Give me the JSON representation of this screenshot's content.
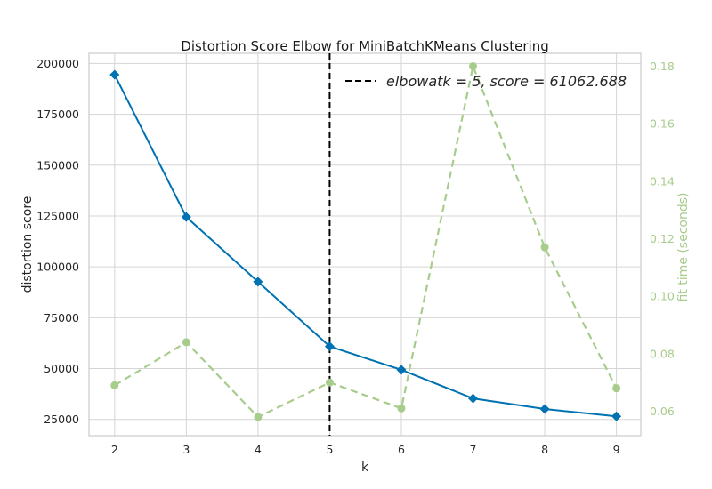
{
  "chart_data": {
    "type": "line",
    "title": "Distortion Score Elbow for MiniBatchKMeans Clustering",
    "xlabel": "k",
    "ylabel": "distortion score",
    "y2label": "fit time (seconds)",
    "x": [
      2,
      3,
      4,
      5,
      6,
      7,
      8,
      9
    ],
    "xticks": [
      "2",
      "3",
      "4",
      "5",
      "6",
      "7",
      "8",
      "9"
    ],
    "ylim": [
      17000,
      205000
    ],
    "yticks": [
      25000,
      50000,
      75000,
      100000,
      125000,
      150000,
      175000,
      200000
    ],
    "ytick_labels": [
      "25000",
      "50000",
      "75000",
      "100000",
      "125000",
      "150000",
      "175000",
      "200000"
    ],
    "y2lim": [
      0.0515,
      0.1845
    ],
    "y2ticks": [
      0.06,
      0.08,
      0.1,
      0.12,
      0.14,
      0.16,
      0.18
    ],
    "y2tick_labels": [
      "0.06",
      "0.08",
      "0.10",
      "0.12",
      "0.14",
      "0.16",
      "0.18"
    ],
    "series": [
      {
        "name": "distortion score",
        "axis": "left",
        "color": "#0072b2",
        "marker": "diamond",
        "values": [
          194500,
          124500,
          92700,
          60900,
          49400,
          35300,
          30100,
          26500
        ]
      },
      {
        "name": "fit time",
        "axis": "right",
        "color": "#a8cc8c",
        "marker": "circle",
        "linestyle": "dashed",
        "values": [
          0.069,
          0.084,
          0.058,
          0.07,
          0.061,
          0.18,
          0.117,
          0.068
        ]
      }
    ],
    "elbow": {
      "k": 5,
      "score": 61062.688,
      "legend_label": "elbow at k = 5, score = 61062.688",
      "legend_display": "elbowatk = 5, score = 61062.688",
      "color": "#000000"
    },
    "grid": true,
    "legend_position": "top-right"
  }
}
